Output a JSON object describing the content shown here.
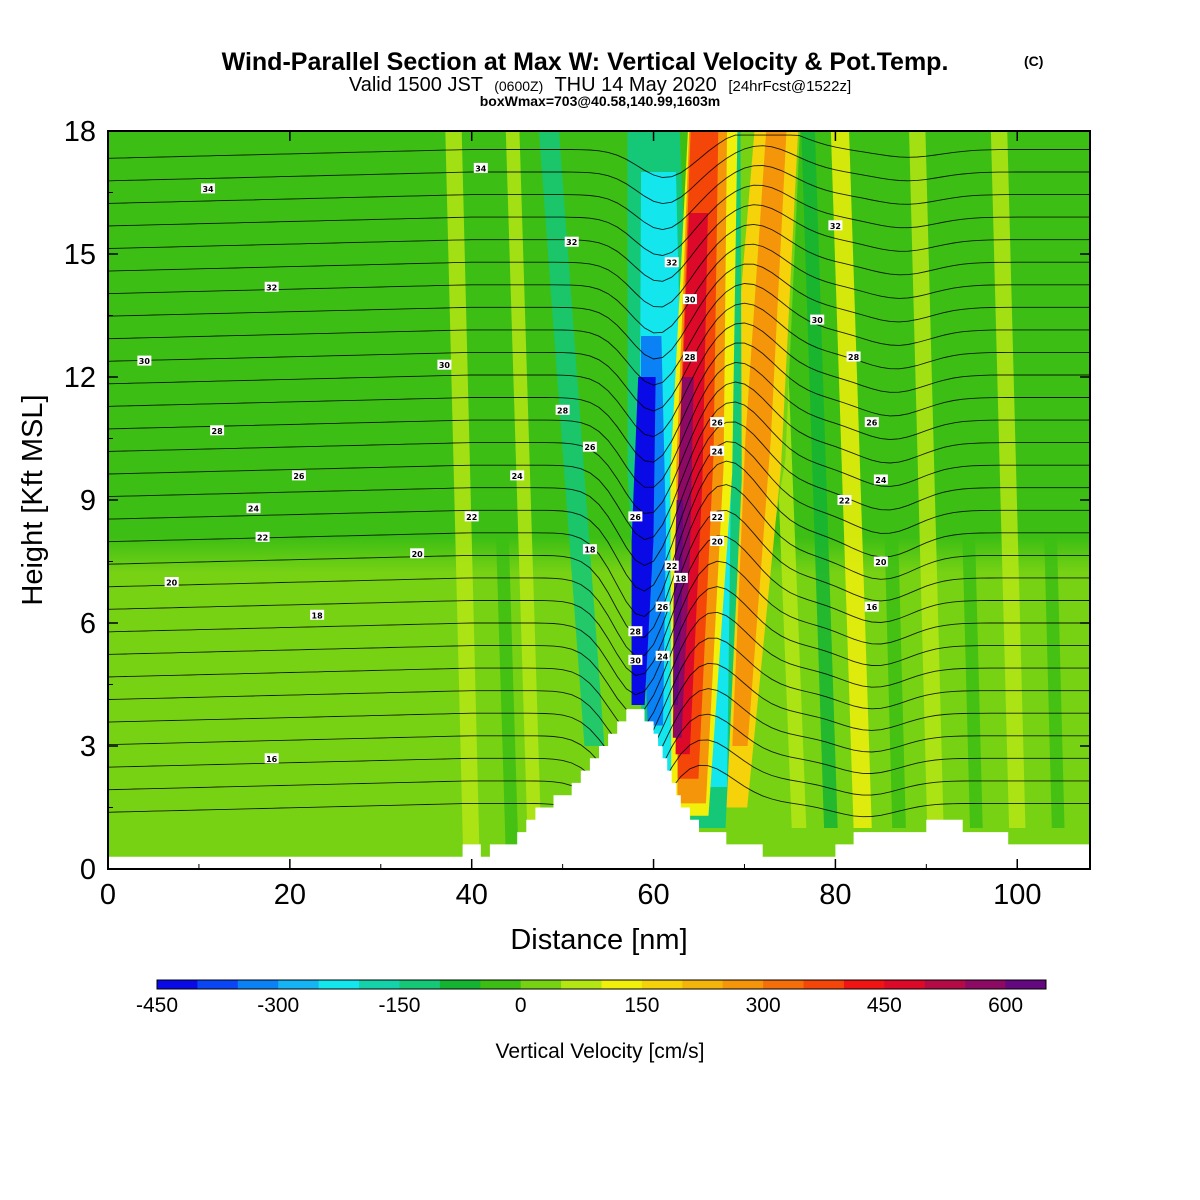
{
  "header": {
    "title": "Wind-Parallel Section at Max W: Vertical Velocity & Pot.Temp.",
    "copyright": "(C)",
    "valid_main": "Valid 1500 JST",
    "valid_utc": "(0600Z)",
    "valid_date": "THU 14 May 2020",
    "forecast": "[24hrFcst@1522z]",
    "box_info": "boxWmax=703@40.58,140.99,1603m"
  },
  "colorbar": {
    "label": "Vertical Velocity [cm/s]",
    "min": -450,
    "step": 50,
    "tick_labels": [
      "-450",
      "-300",
      "-150",
      "0",
      "150",
      "300",
      "450",
      "600"
    ],
    "tick_values": [
      -450,
      -300,
      -150,
      0,
      150,
      300,
      450,
      600
    ],
    "colors": [
      "#0a0ae6",
      "#0a46f5",
      "#0a82f5",
      "#14b4f5",
      "#14e6ee",
      "#14d2aa",
      "#14c878",
      "#14b432",
      "#3cbe14",
      "#78d214",
      "#b4e614",
      "#f0f00a",
      "#f5d20a",
      "#f5b40a",
      "#f5960a",
      "#f56e0a",
      "#f5460a",
      "#f01414",
      "#dc0a28",
      "#b40a46",
      "#8c0a64",
      "#64087f"
    ]
  },
  "chart_data": {
    "type": "heatmap",
    "title": "Wind-Parallel Section at Max W: Vertical Velocity & Pot.Temp.",
    "xlabel": "Distance [nm]",
    "ylabel": "Height [Kft MSL]",
    "xlim": [
      0,
      108
    ],
    "ylim": [
      0,
      18
    ],
    "x_ticks": [
      0,
      20,
      40,
      60,
      80,
      100
    ],
    "y_ticks": [
      0,
      3,
      6,
      9,
      12,
      15,
      18
    ],
    "x_tick_labels": [
      "0",
      "20",
      "40",
      "60",
      "80",
      "100"
    ],
    "y_tick_labels": [
      "0",
      "3",
      "6",
      "9",
      "12",
      "15",
      "18"
    ],
    "field": "Vertical Velocity [cm/s]",
    "field_max": 703,
    "terrain": [
      [
        0,
        0.3
      ],
      [
        39,
        0.3
      ],
      [
        39,
        0.6
      ],
      [
        41,
        0.6
      ],
      [
        41,
        0.3
      ],
      [
        42,
        0.3
      ],
      [
        42,
        0.6
      ],
      [
        45,
        0.6
      ],
      [
        45,
        0.9
      ],
      [
        46,
        0.9
      ],
      [
        46,
        1.2
      ],
      [
        47,
        1.2
      ],
      [
        47,
        1.5
      ],
      [
        49,
        1.5
      ],
      [
        49,
        1.8
      ],
      [
        51,
        1.8
      ],
      [
        51,
        2.1
      ],
      [
        52,
        2.1
      ],
      [
        52,
        2.4
      ],
      [
        53,
        2.4
      ],
      [
        53,
        2.7
      ],
      [
        54,
        2.7
      ],
      [
        54,
        3.0
      ],
      [
        55,
        3.0
      ],
      [
        55,
        3.3
      ],
      [
        56,
        3.3
      ],
      [
        56,
        3.6
      ],
      [
        57,
        3.6
      ],
      [
        57,
        3.9
      ],
      [
        59,
        3.9
      ],
      [
        59,
        3.6
      ],
      [
        60,
        3.6
      ],
      [
        60,
        3.3
      ],
      [
        60.5,
        3.3
      ],
      [
        60.5,
        3.0
      ],
      [
        61,
        3.0
      ],
      [
        61,
        2.7
      ],
      [
        61.5,
        2.7
      ],
      [
        61.5,
        2.4
      ],
      [
        62,
        2.4
      ],
      [
        62,
        2.1
      ],
      [
        62.5,
        2.1
      ],
      [
        62.5,
        1.8
      ],
      [
        63,
        1.8
      ],
      [
        63,
        1.5
      ],
      [
        64,
        1.5
      ],
      [
        64,
        1.2
      ],
      [
        65,
        1.2
      ],
      [
        65,
        0.9
      ],
      [
        68,
        0.9
      ],
      [
        68,
        0.6
      ],
      [
        72,
        0.6
      ],
      [
        72,
        0.3
      ],
      [
        80,
        0.3
      ],
      [
        80,
        0.6
      ],
      [
        82,
        0.6
      ],
      [
        82,
        0.9
      ],
      [
        90,
        0.9
      ],
      [
        90,
        1.2
      ],
      [
        94,
        1.2
      ],
      [
        94,
        0.9
      ],
      [
        99,
        0.9
      ],
      [
        99,
        0.6
      ],
      [
        108,
        0.6
      ]
    ],
    "theta_contour_labels": [
      {
        "x": 41,
        "y": 17.1,
        "text": "34"
      },
      {
        "x": 11,
        "y": 16.6,
        "text": "34"
      },
      {
        "x": 51,
        "y": 15.3,
        "text": "32"
      },
      {
        "x": 18,
        "y": 14.2,
        "text": "32"
      },
      {
        "x": 62,
        "y": 14.8,
        "text": "32"
      },
      {
        "x": 64,
        "y": 13.9,
        "text": "30"
      },
      {
        "x": 80,
        "y": 15.7,
        "text": "32"
      },
      {
        "x": 78,
        "y": 13.4,
        "text": "30"
      },
      {
        "x": 4,
        "y": 12.4,
        "text": "30"
      },
      {
        "x": 37,
        "y": 12.3,
        "text": "30"
      },
      {
        "x": 64,
        "y": 12.5,
        "text": "28"
      },
      {
        "x": 82,
        "y": 12.5,
        "text": "28"
      },
      {
        "x": 50,
        "y": 11.2,
        "text": "28"
      },
      {
        "x": 12,
        "y": 10.7,
        "text": "28"
      },
      {
        "x": 67,
        "y": 10.9,
        "text": "26"
      },
      {
        "x": 84,
        "y": 10.9,
        "text": "26"
      },
      {
        "x": 53,
        "y": 10.3,
        "text": "26"
      },
      {
        "x": 21,
        "y": 9.6,
        "text": "26"
      },
      {
        "x": 45,
        "y": 9.6,
        "text": "24"
      },
      {
        "x": 67,
        "y": 10.2,
        "text": "24"
      },
      {
        "x": 85,
        "y": 9.5,
        "text": "24"
      },
      {
        "x": 16,
        "y": 8.8,
        "text": "24"
      },
      {
        "x": 58,
        "y": 8.6,
        "text": "26"
      },
      {
        "x": 40,
        "y": 8.6,
        "text": "22"
      },
      {
        "x": 67,
        "y": 8.6,
        "text": "22"
      },
      {
        "x": 81,
        "y": 9.0,
        "text": "22"
      },
      {
        "x": 17,
        "y": 8.1,
        "text": "22"
      },
      {
        "x": 67,
        "y": 8.0,
        "text": "20"
      },
      {
        "x": 34,
        "y": 7.7,
        "text": "20"
      },
      {
        "x": 53,
        "y": 7.8,
        "text": "18"
      },
      {
        "x": 85,
        "y": 7.5,
        "text": "20"
      },
      {
        "x": 62,
        "y": 7.4,
        "text": "22"
      },
      {
        "x": 63,
        "y": 7.1,
        "text": "18"
      },
      {
        "x": 7,
        "y": 7.0,
        "text": "20"
      },
      {
        "x": 61,
        "y": 6.4,
        "text": "26"
      },
      {
        "x": 84,
        "y": 6.4,
        "text": "16"
      },
      {
        "x": 23,
        "y": 6.2,
        "text": "18"
      },
      {
        "x": 58,
        "y": 5.8,
        "text": "28"
      },
      {
        "x": 58,
        "y": 5.1,
        "text": "30"
      },
      {
        "x": 61,
        "y": 5.2,
        "text": "24"
      },
      {
        "x": 18,
        "y": 2.7,
        "text": "16"
      }
    ]
  }
}
